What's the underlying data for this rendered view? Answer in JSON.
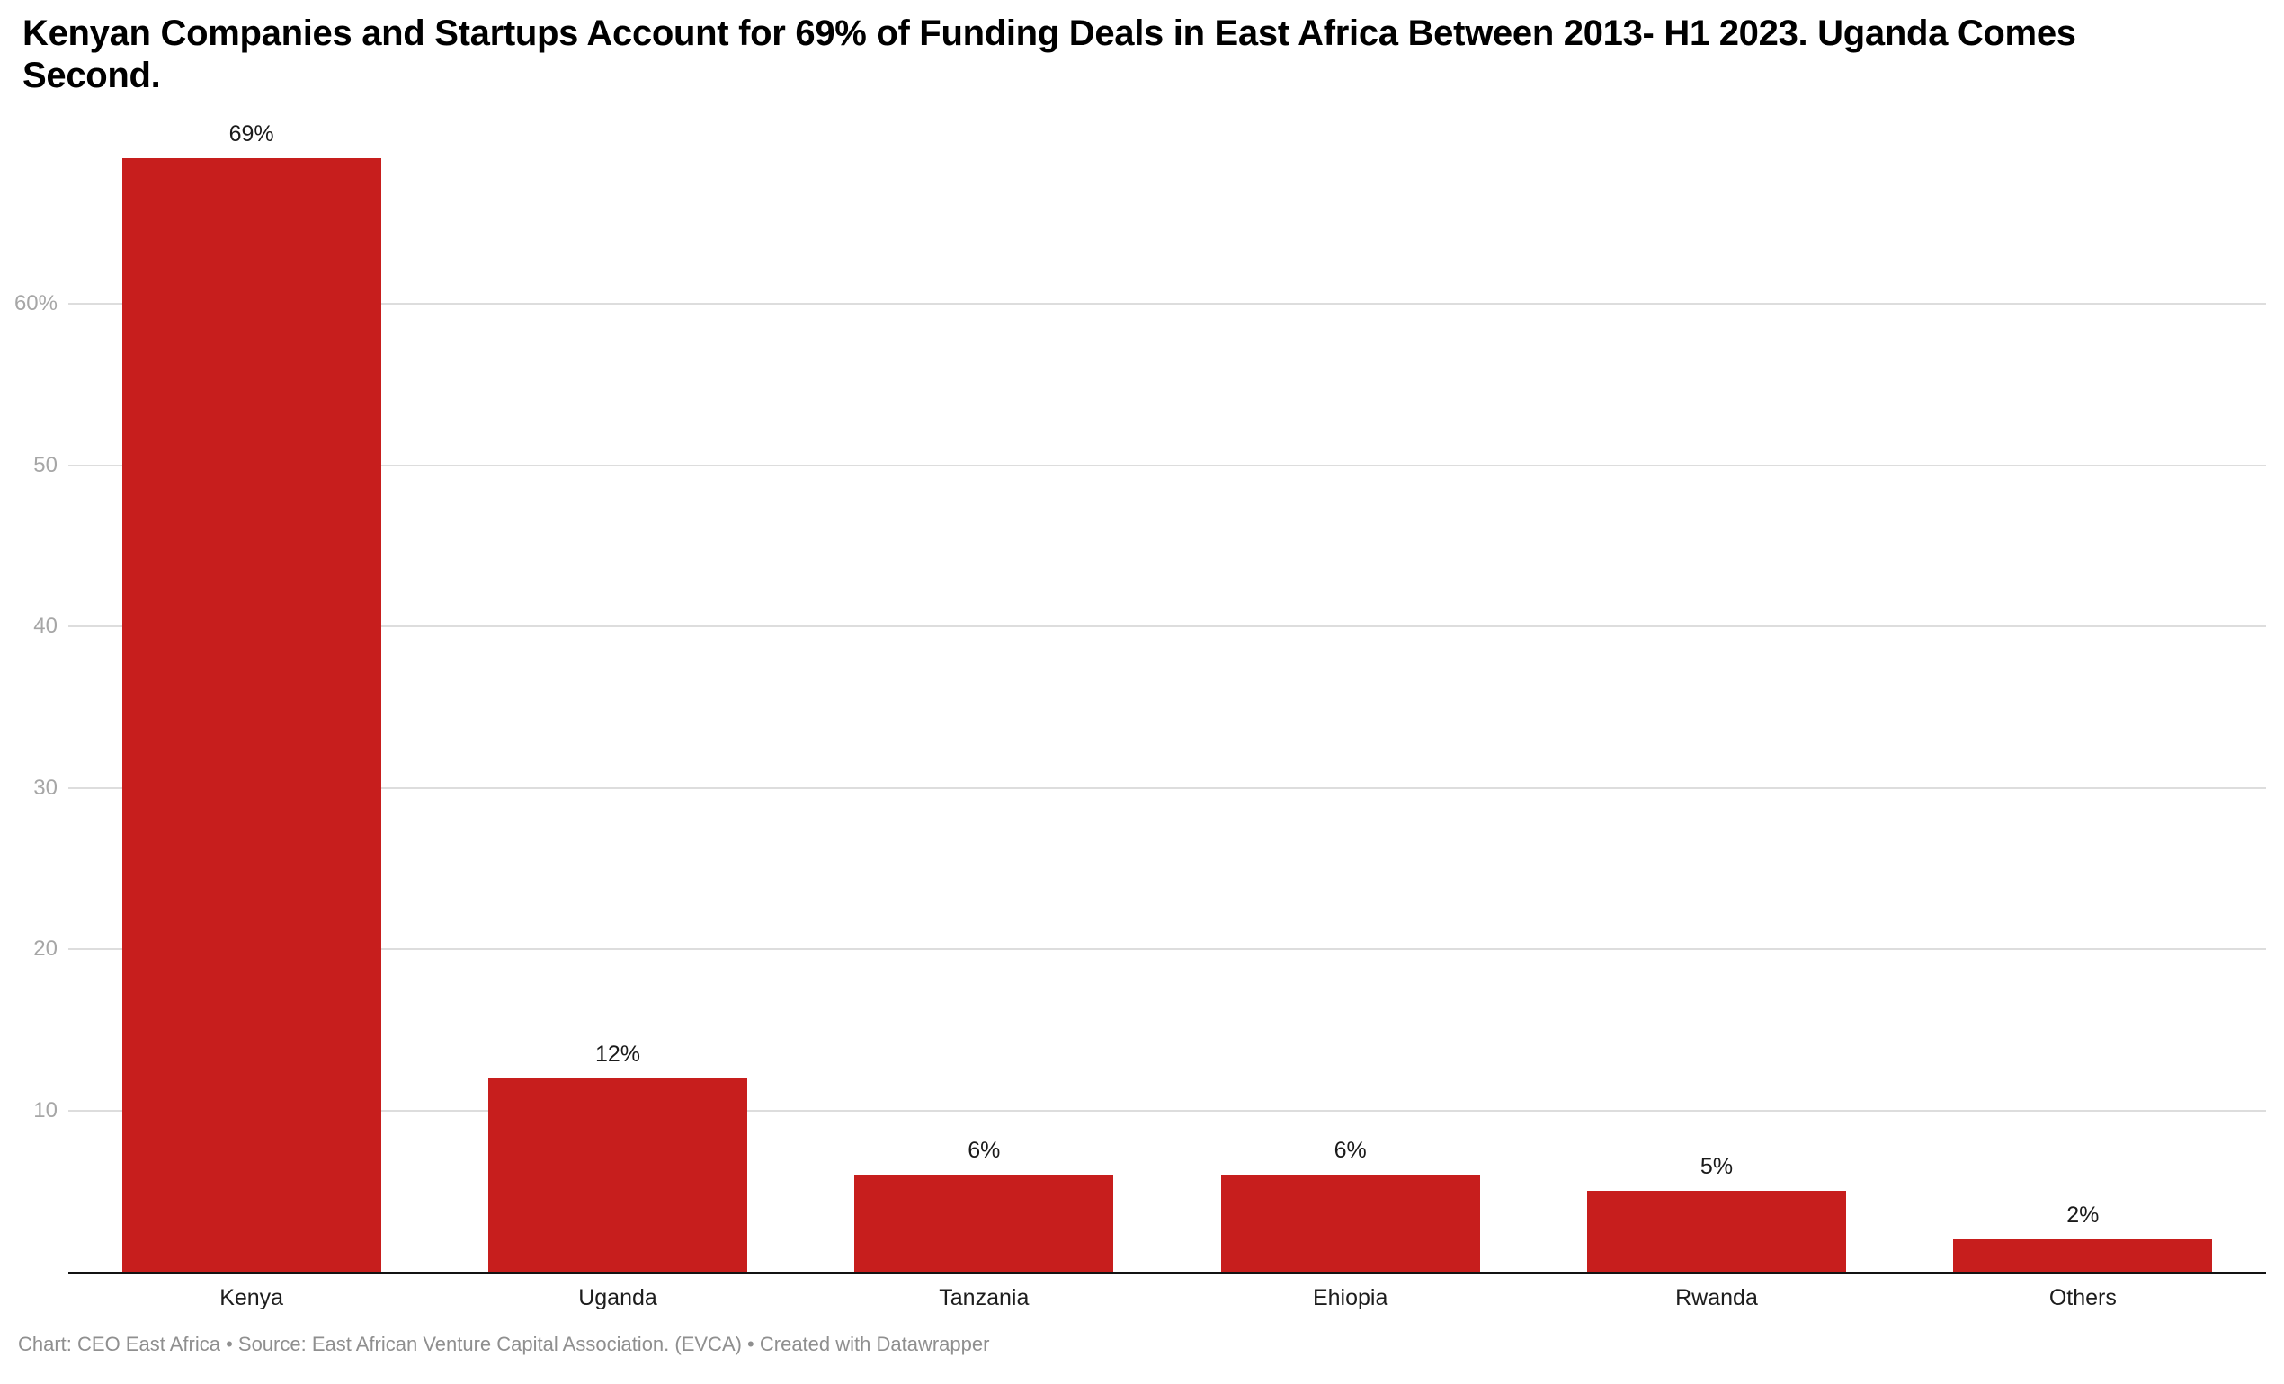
{
  "title": {
    "line1": "Kenyan Companies and Startups Account for 69% of Funding Deals in East Africa Between 2013- H1 2023. Uganda Comes",
    "line2": "Second."
  },
  "footer": {
    "text": "Chart: CEO East Africa • Source: East African Venture Capital Association. (EVCA) • Created with Datawrapper"
  },
  "colors": {
    "bar": "#c71e1d",
    "grid": "#dddddd",
    "axis_line": "#131313",
    "tick_label": "#a6a6a6",
    "value_label": "#1a1a1a",
    "category_label": "#1d1d1d",
    "title_text": "#000000",
    "footer_text": "#8f8f8f",
    "background": "#ffffff"
  },
  "chart_data": {
    "type": "bar",
    "title": "Kenyan Companies and Startups Account for 69% of Funding Deals in East Africa Between 2013- H1 2023. Uganda Comes Second.",
    "categories": [
      "Kenya",
      "Uganda",
      "Tanzania",
      "Ehiopia",
      "Rwanda",
      "Others"
    ],
    "values": [
      69,
      12,
      6,
      6,
      5,
      2
    ],
    "value_labels": [
      "69%",
      "12%",
      "6%",
      "6%",
      "5%",
      "2%"
    ],
    "xlabel": "",
    "ylabel": "",
    "ylim": [
      0,
      69
    ],
    "yticks": [
      {
        "value": 60,
        "label": "60%"
      },
      {
        "value": 50,
        "label": "50"
      },
      {
        "value": 40,
        "label": "40"
      },
      {
        "value": 30,
        "label": "30"
      },
      {
        "value": 20,
        "label": "20"
      },
      {
        "value": 10,
        "label": "10"
      }
    ],
    "grid": "horizontal",
    "legend": "none",
    "source_note": "Chart: CEO East Africa • Source: East African Venture Capital Association. (EVCA) • Created with Datawrapper"
  }
}
